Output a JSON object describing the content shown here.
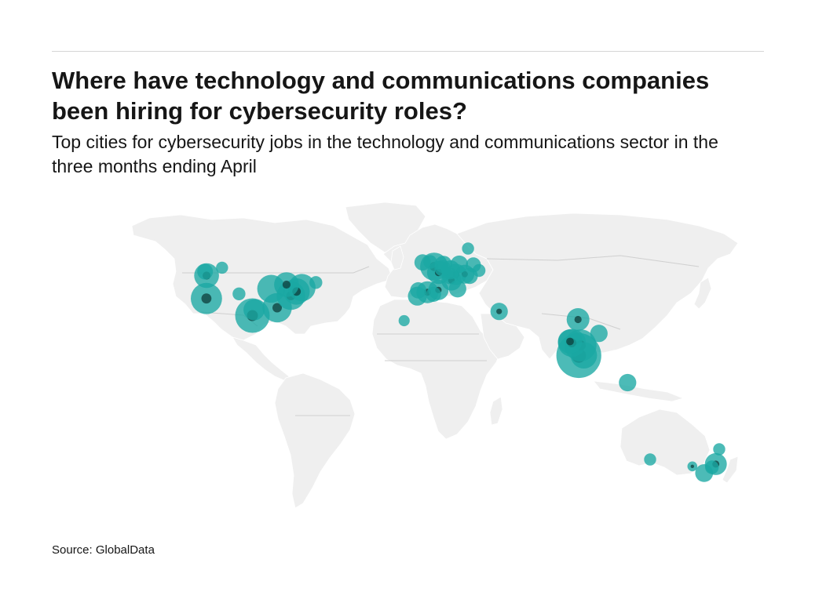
{
  "title": "Where have technology and communications companies been hiring for cybersecurity roles?",
  "subtitle": "Top cities for cybersecurity jobs in the technology and communications sector in the three months ending April",
  "source": "Source: GlobalData",
  "colors": {
    "land": "#efefef",
    "border": "#cfcfcf",
    "bubble": "#1aa8a3",
    "bubble_dark": "#0d3d3b",
    "rule": "#d6d6d6"
  },
  "chart_data": {
    "type": "bubble-map",
    "points": [
      {
        "lon": -122.3,
        "lat": 47.6,
        "size": 3.0,
        "core": true
      },
      {
        "lon": -123.1,
        "lat": 49.3,
        "size": 0.9,
        "core": false
      },
      {
        "lon": -114.0,
        "lat": 51.0,
        "size": 0.4,
        "core": false
      },
      {
        "lon": -122.4,
        "lat": 37.7,
        "size": 5.2,
        "core": true
      },
      {
        "lon": -104.9,
        "lat": 39.7,
        "size": 0.5,
        "core": false
      },
      {
        "lon": -97.7,
        "lat": 30.3,
        "size": 6.6,
        "core": true
      },
      {
        "lon": -96.8,
        "lat": 32.8,
        "size": 2.0,
        "core": false
      },
      {
        "lon": -87.6,
        "lat": 41.9,
        "size": 4.0,
        "core": false
      },
      {
        "lon": -84.4,
        "lat": 33.7,
        "size": 4.5,
        "core": true
      },
      {
        "lon": -77.0,
        "lat": 38.9,
        "size": 4.2,
        "core": true
      },
      {
        "lon": -74.0,
        "lat": 40.7,
        "size": 3.5,
        "core": true
      },
      {
        "lon": -79.4,
        "lat": 43.7,
        "size": 3.0,
        "core": true
      },
      {
        "lon": -71.1,
        "lat": 42.4,
        "size": 3.8,
        "core": false
      },
      {
        "lon": -63.6,
        "lat": 44.6,
        "size": 0.5,
        "core": false
      },
      {
        "lon": -0.1,
        "lat": 51.5,
        "size": 4.0,
        "core": true
      },
      {
        "lon": -6.3,
        "lat": 53.3,
        "size": 1.0,
        "core": false
      },
      {
        "lon": -2.2,
        "lat": 53.5,
        "size": 0.6,
        "core": false
      },
      {
        "lon": 2.3,
        "lat": 48.9,
        "size": 2.5,
        "core": true
      },
      {
        "lon": 4.9,
        "lat": 52.4,
        "size": 1.2,
        "core": false
      },
      {
        "lon": 8.7,
        "lat": 50.1,
        "size": 1.5,
        "core": false
      },
      {
        "lon": 11.6,
        "lat": 48.1,
        "size": 2.0,
        "core": true
      },
      {
        "lon": 13.4,
        "lat": 52.5,
        "size": 1.2,
        "core": false
      },
      {
        "lon": 8.5,
        "lat": 47.4,
        "size": 1.0,
        "core": false
      },
      {
        "lon": 16.4,
        "lat": 48.2,
        "size": 1.5,
        "core": true
      },
      {
        "lon": 19.0,
        "lat": 47.5,
        "size": 1.0,
        "core": false
      },
      {
        "lon": 21.0,
        "lat": 52.2,
        "size": 0.8,
        "core": false
      },
      {
        "lon": 24.0,
        "lat": 49.8,
        "size": 0.5,
        "core": false
      },
      {
        "lon": 18.1,
        "lat": 59.3,
        "size": 0.4,
        "core": false
      },
      {
        "lon": 9.2,
        "lat": 45.5,
        "size": 1.8,
        "core": true
      },
      {
        "lon": 12.5,
        "lat": 41.9,
        "size": 1.2,
        "core": false
      },
      {
        "lon": 2.2,
        "lat": 41.4,
        "size": 1.8,
        "core": true
      },
      {
        "lon": -3.7,
        "lat": 40.4,
        "size": 2.2,
        "core": true
      },
      {
        "lon": -9.1,
        "lat": 38.7,
        "size": 1.5,
        "core": false
      },
      {
        "lon": -8.6,
        "lat": 41.2,
        "size": 1.0,
        "core": false
      },
      {
        "lon": -0.4,
        "lat": 39.5,
        "size": 0.8,
        "core": false
      },
      {
        "lon": 4.4,
        "lat": 50.8,
        "size": 1.0,
        "core": false
      },
      {
        "lon": -16.2,
        "lat": 28.1,
        "size": 0.3,
        "core": false
      },
      {
        "lon": 34.8,
        "lat": 32.1,
        "size": 1.2,
        "core": true
      },
      {
        "lon": 77.2,
        "lat": 28.6,
        "size": 2.4,
        "core": true
      },
      {
        "lon": 88.4,
        "lat": 22.6,
        "size": 1.2,
        "core": false
      },
      {
        "lon": 72.9,
        "lat": 19.1,
        "size": 2.8,
        "core": true
      },
      {
        "lon": 73.9,
        "lat": 18.5,
        "size": 4.0,
        "core": true
      },
      {
        "lon": 78.5,
        "lat": 17.4,
        "size": 5.5,
        "core": true
      },
      {
        "lon": 77.6,
        "lat": 13.0,
        "size": 12.0,
        "core": true
      },
      {
        "lon": 80.3,
        "lat": 13.1,
        "size": 3.5,
        "core": false
      },
      {
        "lon": 103.8,
        "lat": 1.3,
        "size": 1.2,
        "core": false
      },
      {
        "lon": 151.2,
        "lat": -33.9,
        "size": 2.2,
        "core": true
      },
      {
        "lon": 144.9,
        "lat": -37.8,
        "size": 1.3,
        "core": false
      },
      {
        "lon": 153.0,
        "lat": -27.5,
        "size": 0.4,
        "core": false
      },
      {
        "lon": 115.9,
        "lat": -31.9,
        "size": 0.4,
        "core": false
      },
      {
        "lon": 138.6,
        "lat": -34.9,
        "size": 0.2,
        "core": true
      },
      {
        "lon": 149.1,
        "lat": -35.3,
        "size": 0.6,
        "core": false
      }
    ]
  }
}
